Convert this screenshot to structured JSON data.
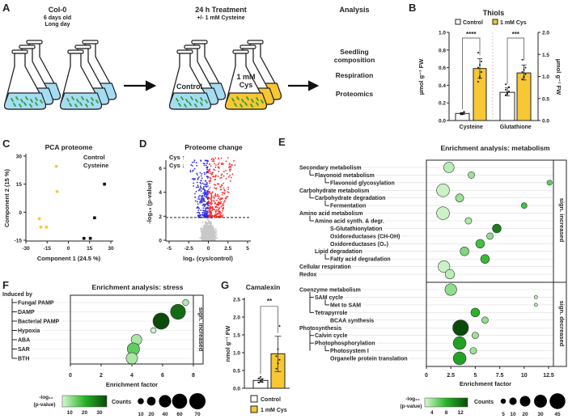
{
  "colors": {
    "cys_yellow": "#f7c734",
    "water_blue": "#a6dcf2",
    "seedling_green": "#2e9e3a",
    "increased_red": "#ff2626",
    "decreased_blue": "#2a2ae8",
    "neutral_gray": "#c8c8c8",
    "pvalue_low": "#d9f8d2",
    "pvalue_mid": "#27b427",
    "pvalue_high": "#0b4a0b"
  },
  "panel_a": {
    "letter": "A",
    "col0_title": "Col-0",
    "col0_age": "6 days old",
    "col0_light": "Long day",
    "treatment_title": "24 h Treatment",
    "treatment_sub": "+/- 1 mM Cysteine",
    "flask_control_label": "Control",
    "flask_cys_label_1": "1 mM",
    "flask_cys_label_2": "Cys",
    "analysis_title": "Analysis",
    "analysis_items": [
      "Seedling composition",
      "Respiration",
      "Proteomics"
    ]
  },
  "chart_data": [
    {
      "panel": "B",
      "type": "bar",
      "title": "Thiols",
      "categories": [
        "Cysteine",
        "Glutathione"
      ],
      "axes": {
        "left": {
          "label": "µmol g⁻¹ FW",
          "ylim": [
            0,
            1.0
          ],
          "ticks": [
            "0.0",
            "0.2",
            "0.4",
            "0.6",
            "0.8",
            "1.0"
          ],
          "used_by": "Cysteine"
        },
        "right": {
          "label": "µmol g⁻¹ FW",
          "ylim": [
            0,
            2.0
          ],
          "ticks": [
            "0.0",
            "0.5",
            "1.0",
            "1.5",
            "2.0"
          ],
          "used_by": "Glutathione"
        }
      },
      "series": [
        {
          "name": "Control",
          "values": [
            0.08,
            0.64
          ],
          "err_low": [
            0.07,
            0.56
          ],
          "err_high": [
            0.09,
            0.74
          ],
          "points": [
            [
              0.07,
              0.08,
              0.09,
              0.08,
              0.07,
              0.1,
              0.08
            ],
            [
              0.58,
              0.62,
              0.66,
              0.7,
              0.6,
              0.76,
              0.82,
              0.64
            ]
          ]
        },
        {
          "name": "1 mM Cys",
          "values": [
            0.59,
            1.08
          ],
          "err_low": [
            0.48,
            0.92
          ],
          "err_high": [
            0.7,
            1.26
          ],
          "points": [
            [
              0.44,
              0.5,
              0.55,
              0.6,
              0.63,
              0.67,
              0.77,
              0.48
            ],
            [
              0.94,
              1.0,
              1.05,
              1.1,
              1.15,
              1.2,
              1.38,
              0.98
            ]
          ]
        }
      ],
      "significance": [
        "****",
        "***"
      ]
    },
    {
      "panel": "C",
      "type": "scatter",
      "title": "PCA proteome",
      "xlabel": "Component 1 (24.5 %)",
      "ylabel": "Component 2 (15 %)",
      "xlim": [
        -30,
        30
      ],
      "ylim": [
        -15,
        30
      ],
      "xticks": [
        "-30",
        "-15",
        "0",
        "15",
        "30"
      ],
      "yticks": [
        "-15",
        "0",
        "15",
        "30"
      ],
      "series": [
        {
          "name": "Control",
          "points": [
            [
              25.5,
              15
            ],
            [
              18.5,
              -3
            ],
            [
              11,
              -14
            ],
            [
              15.5,
              -14
            ]
          ]
        },
        {
          "name": "Cysteine",
          "points": [
            [
              -8.5,
              24.5
            ],
            [
              -8,
              11
            ],
            [
              -20.5,
              -3.5
            ],
            [
              -19.5,
              -8
            ],
            [
              -15.5,
              -8
            ]
          ]
        }
      ],
      "legend": "top-right"
    },
    {
      "panel": "D",
      "type": "scatter",
      "title": "Proteome change",
      "xlabel": "log₂ (cys/control)",
      "ylabel": "-log₁₀ (p-value)",
      "xlim": [
        -5.5,
        5.5
      ],
      "ylim": [
        0,
        7
      ],
      "xticks": [
        "-5",
        "-2.5",
        "0",
        "2.5",
        "5"
      ],
      "yticks": [
        "0",
        "2",
        "4",
        "6"
      ],
      "threshold_neglog10p": 1.9,
      "legend": [
        {
          "label": "Cys ↑",
          "color": "#ff2626"
        },
        {
          "label": "Cys ↓",
          "color": "#2a2ae8"
        }
      ]
    },
    {
      "panel": "E",
      "type": "scatter",
      "subtype": "bubble",
      "title": "Enrichment analysis: metabolism",
      "xlabel": "Enrichment factor",
      "xlim": [
        0,
        13
      ],
      "xticks": [
        "0",
        "2.5",
        "5",
        "7.5",
        "10",
        "12.5"
      ],
      "groups": [
        {
          "side_label": "sign. increased",
          "color": "#ff2626",
          "items": [
            {
              "label": "Secondary metabolism",
              "level": 0,
              "branch": "",
              "x": 2.3,
              "count": 20,
              "p": 3
            },
            {
              "label": "Flavonoid metabolism",
              "level": 1,
              "branch": "L",
              "x": 4.6,
              "count": 8,
              "p": 4
            },
            {
              "label": "Flavonoid glycosylation",
              "level": 2,
              "branch": "L",
              "x": 12.6,
              "count": 5,
              "p": 6
            },
            {
              "label": "Carbohydrate metabolism",
              "level": 0,
              "branch": "",
              "x": 1.7,
              "count": 30,
              "p": 2.5
            },
            {
              "label": "Carbohydrate degradation",
              "level": 1,
              "branch": "L",
              "x": 3.4,
              "count": 12,
              "p": 4
            },
            {
              "label": "Fermentation",
              "level": 2,
              "branch": "L",
              "x": 10.0,
              "count": 6,
              "p": 7
            },
            {
              "label": "Amino acid metabolism",
              "level": 0,
              "branch": "",
              "x": 1.7,
              "count": 30,
              "p": 2.5
            },
            {
              "label": "Amino acid synth. & degr.",
              "level": 1,
              "branch": "L",
              "x": 4.3,
              "count": 8,
              "p": 3.5
            },
            {
              "label": "S-Glutathionylation",
              "level": 2,
              "branch": "",
              "x": 7.2,
              "count": 14,
              "p": 11
            },
            {
              "label": "Oxidoreductases (CH-OH)",
              "level": 2,
              "branch": "",
              "x": 6.5,
              "count": 8,
              "p": 4.5
            },
            {
              "label": "Oxidoreductases (O₂)",
              "level": 2,
              "branch": "",
              "x": 5.5,
              "count": 14,
              "p": 7
            },
            {
              "label": "Lipid degradation",
              "level": 1,
              "branch": "",
              "x": 3.9,
              "count": 14,
              "p": 5
            },
            {
              "label": "Fatty acid degradation",
              "level": 2,
              "branch": "L",
              "x": 6.0,
              "count": 14,
              "p": 7.5
            },
            {
              "label": "Cellular respiration",
              "level": 0,
              "branch": "",
              "x": 1.8,
              "count": 25,
              "p": 2.5
            },
            {
              "label": "Redox",
              "level": 0,
              "branch": "",
              "x": 2.4,
              "count": 16,
              "p": 3
            }
          ]
        },
        {
          "side_label": "sign. decreased",
          "color": "#2a2ae8",
          "items": [
            {
              "label": "Coenzyme metabolism",
              "level": 0,
              "branch": "",
              "x": 2.5,
              "count": 25,
              "p": 4.5
            },
            {
              "label": "SAM cycle",
              "level": 1,
              "branch": "T",
              "x": 11.2,
              "count": 2,
              "p": 3
            },
            {
              "label": "Met to SAM",
              "level": 2,
              "branch": "L",
              "x": 11.2,
              "count": 2,
              "p": 3
            },
            {
              "label": "Tetrapyrrole",
              "level": 1,
              "branch": "L",
              "x": 5.0,
              "count": 14,
              "p": 8
            },
            {
              "label": "BCAA synthesis",
              "level": 2,
              "branch": "",
              "x": 6.0,
              "count": 8,
              "p": 4.5
            },
            {
              "label": "Photosynthesis",
              "level": 0,
              "branch": "",
              "x": 3.5,
              "count": 45,
              "p": 14
            },
            {
              "label": "Calvin cycle",
              "level": 1,
              "branch": "T",
              "x": 5.0,
              "count": 8,
              "p": 4
            },
            {
              "label": "Photophosphorylation",
              "level": 1,
              "branch": "L",
              "x": 3.4,
              "count": 30,
              "p": 9
            },
            {
              "label": "Photosystem I",
              "level": 2,
              "branch": "L",
              "x": 4.8,
              "count": 8,
              "p": 4
            },
            {
              "label": "Organelle protein translation",
              "level": 2,
              "branch": "",
              "x": 3.4,
              "count": 30,
              "p": 9
            }
          ]
        }
      ],
      "color_legend": {
        "title_1": "-log₁₀",
        "title_2": "(p-value)",
        "range": [
          2,
          14
        ],
        "ticks": [
          4,
          8,
          12
        ]
      },
      "size_legend": {
        "title": "Counts",
        "values": [
          5,
          10,
          20,
          30,
          45
        ]
      }
    },
    {
      "panel": "F",
      "type": "scatter",
      "subtype": "bubble",
      "title": "Enrichment analysis: stress",
      "xlabel": "Enrichment factor",
      "xlim": [
        0,
        8
      ],
      "xticks": [
        "0",
        "2",
        "4",
        "6",
        "8"
      ],
      "group_header": "Induced by",
      "side_label": "sign. increased",
      "items": [
        {
          "label": "Fungal PAMP",
          "x": 7.5,
          "count": 10,
          "p": 8
        },
        {
          "label": "DAMP",
          "x": 7.0,
          "count": 60,
          "p": 30
        },
        {
          "label": "Bacterial PAMP",
          "x": 5.9,
          "count": 70,
          "p": 35
        },
        {
          "label": "Hypoxia",
          "x": 5.4,
          "count": 8,
          "p": 6
        },
        {
          "label": "ABA",
          "x": 4.3,
          "count": 30,
          "p": 9
        },
        {
          "label": "SAR",
          "x": 4.1,
          "count": 40,
          "p": 15
        },
        {
          "label": "BTH",
          "x": 4.0,
          "count": 35,
          "p": 9
        }
      ],
      "color_legend": {
        "title_1": "-log₁₀",
        "title_2": "(p-value)",
        "range": [
          5,
          35
        ],
        "ticks": [
          10,
          20,
          30
        ]
      },
      "size_legend": {
        "title": "Counts",
        "values": [
          10,
          20,
          40,
          60,
          70
        ]
      }
    },
    {
      "panel": "G",
      "type": "bar",
      "title": "Camalexin",
      "ylabel": "nmol g⁻¹ FW",
      "ylim": [
        0,
        2.5
      ],
      "yticks": [
        "0.0",
        "0.5",
        "1.0",
        "1.5",
        "2.0",
        "2.5"
      ],
      "series": [
        {
          "name": "Control",
          "value": 0.22,
          "err_low": 0.17,
          "err_high": 0.27,
          "points": [
            0.16,
            0.2,
            0.24,
            0.28,
            0.32,
            0.18
          ]
        },
        {
          "name": "1 mM Cys",
          "value": 0.97,
          "err_low": 0.47,
          "err_high": 1.46,
          "points": [
            0.55,
            0.7,
            0.8,
            0.9,
            1.1,
            1.75
          ]
        }
      ],
      "significance": "**"
    }
  ]
}
